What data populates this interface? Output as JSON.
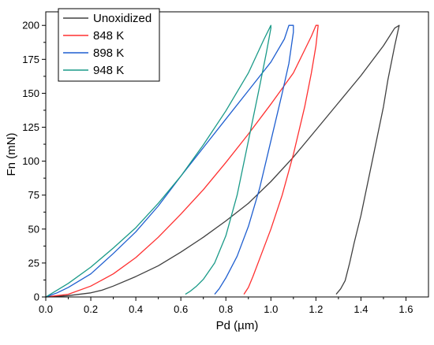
{
  "chart_data": {
    "type": "line",
    "title": "",
    "xlabel": "Pd (µm)",
    "ylabel": "Fn (mN)",
    "xlim": [
      0.0,
      1.7
    ],
    "ylim": [
      0,
      210
    ],
    "x_ticks": [
      0.0,
      0.2,
      0.4,
      0.6,
      0.8,
      1.0,
      1.2,
      1.4,
      1.6
    ],
    "x_tick_labels": [
      "0.0",
      "0.2",
      "0.4",
      "0.6",
      "0.8",
      "1.0",
      "1.2",
      "1.4",
      "1.6"
    ],
    "y_ticks": [
      0,
      25,
      50,
      75,
      100,
      125,
      150,
      175,
      200
    ],
    "y_tick_labels": [
      "0",
      "25",
      "50",
      "75",
      "100",
      "125",
      "150",
      "175",
      "200"
    ],
    "grid": false,
    "legend_position": "top-left",
    "series": [
      {
        "name": "Unoxidized",
        "color": "#404040",
        "x": [
          0.0,
          0.1,
          0.2,
          0.25,
          0.3,
          0.4,
          0.5,
          0.6,
          0.7,
          0.8,
          0.9,
          1.0,
          1.1,
          1.2,
          1.3,
          1.4,
          1.5,
          1.55,
          1.57,
          1.57,
          1.55,
          1.52,
          1.5,
          1.45,
          1.4,
          1.37,
          1.35,
          1.33,
          1.31,
          1.29
        ],
        "y": [
          0,
          1,
          3,
          5,
          8,
          15,
          23,
          33,
          44,
          56,
          69,
          85,
          103,
          123,
          143,
          163,
          185,
          198,
          200,
          200,
          185,
          160,
          140,
          100,
          60,
          40,
          25,
          12,
          6,
          2
        ]
      },
      {
        "name": "848 K",
        "color": "#ff3030",
        "x": [
          0.0,
          0.05,
          0.1,
          0.2,
          0.3,
          0.4,
          0.5,
          0.6,
          0.7,
          0.8,
          0.9,
          1.0,
          1.1,
          1.18,
          1.2,
          1.21,
          1.2,
          1.18,
          1.15,
          1.1,
          1.05,
          1.0,
          0.95,
          0.92,
          0.9,
          0.88
        ],
        "y": [
          0,
          1,
          2,
          8,
          17,
          29,
          44,
          61,
          79,
          99,
          120,
          142,
          165,
          192,
          200,
          200,
          185,
          165,
          140,
          105,
          75,
          50,
          28,
          15,
          7,
          2
        ]
      },
      {
        "name": "898 K",
        "color": "#1f5fd0",
        "x": [
          0.0,
          0.05,
          0.1,
          0.2,
          0.3,
          0.4,
          0.5,
          0.6,
          0.7,
          0.8,
          0.9,
          1.0,
          1.06,
          1.08,
          1.1,
          1.1,
          1.08,
          1.05,
          1.0,
          0.95,
          0.9,
          0.85,
          0.8,
          0.77,
          0.75
        ],
        "y": [
          0,
          3,
          7,
          17,
          32,
          48,
          67,
          89,
          110,
          131,
          152,
          173,
          190,
          200,
          200,
          195,
          172,
          150,
          115,
          80,
          52,
          30,
          14,
          6,
          2
        ]
      },
      {
        "name": "948 K",
        "color": "#1a9a88",
        "x": [
          0.0,
          0.05,
          0.1,
          0.2,
          0.3,
          0.4,
          0.5,
          0.6,
          0.7,
          0.8,
          0.9,
          0.97,
          1.0,
          1.0,
          0.98,
          0.95,
          0.9,
          0.85,
          0.8,
          0.75,
          0.7,
          0.67,
          0.64,
          0.62
        ],
        "y": [
          0,
          5,
          10,
          22,
          36,
          51,
          69,
          89,
          112,
          137,
          165,
          190,
          200,
          198,
          180,
          155,
          115,
          75,
          45,
          25,
          13,
          8,
          4,
          2
        ]
      }
    ]
  }
}
